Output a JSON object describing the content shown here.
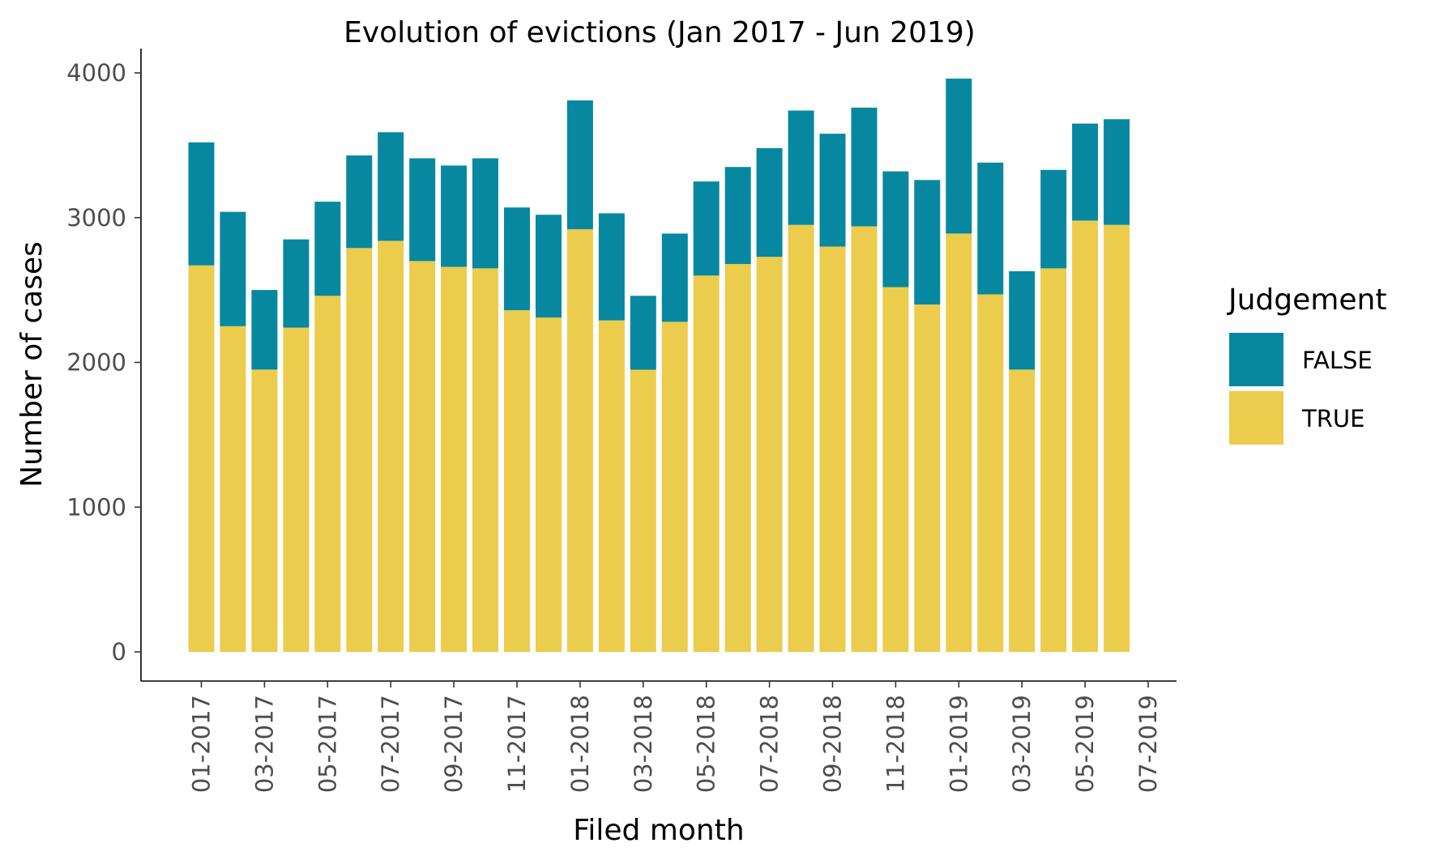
{
  "chart_data": {
    "type": "bar",
    "stacked": true,
    "title": "Evolution of evictions (Jan 2017 - Jun 2019)",
    "xlabel": "Filed month",
    "ylabel": "Number of cases",
    "ylim": [
      0,
      4000
    ],
    "yticks": [
      0,
      1000,
      2000,
      3000,
      4000
    ],
    "xticks": [
      "01-2017",
      "03-2017",
      "05-2017",
      "07-2017",
      "09-2017",
      "11-2017",
      "01-2018",
      "03-2018",
      "05-2018",
      "07-2018",
      "09-2018",
      "11-2018",
      "01-2019",
      "03-2019",
      "05-2019",
      "07-2019"
    ],
    "categories": [
      "01-2017",
      "02-2017",
      "03-2017",
      "04-2017",
      "05-2017",
      "06-2017",
      "07-2017",
      "08-2017",
      "09-2017",
      "10-2017",
      "11-2017",
      "12-2017",
      "01-2018",
      "02-2018",
      "03-2018",
      "04-2018",
      "05-2018",
      "06-2018",
      "07-2018",
      "08-2018",
      "09-2018",
      "10-2018",
      "11-2018",
      "12-2018",
      "01-2019",
      "02-2019",
      "03-2019",
      "04-2019",
      "05-2019",
      "06-2019"
    ],
    "series": [
      {
        "name": "TRUE",
        "color": "#EBCC4C",
        "values": [
          2670,
          2250,
          1950,
          2240,
          2460,
          2790,
          2840,
          2700,
          2660,
          2650,
          2360,
          2310,
          2920,
          2290,
          1950,
          2280,
          2600,
          2680,
          2730,
          2950,
          2800,
          2940,
          2520,
          2400,
          2890,
          2470,
          1950,
          2650,
          2980,
          2950
        ]
      },
      {
        "name": "FALSE",
        "color": "#0788A0",
        "values": [
          850,
          790,
          550,
          610,
          650,
          640,
          750,
          710,
          700,
          760,
          710,
          710,
          890,
          740,
          510,
          610,
          650,
          670,
          750,
          790,
          780,
          820,
          800,
          860,
          1070,
          910,
          680,
          680,
          670,
          730
        ]
      }
    ],
    "legend": {
      "title": "Judgement",
      "position": "right",
      "entries": [
        "FALSE",
        "TRUE"
      ]
    },
    "grid": false
  }
}
